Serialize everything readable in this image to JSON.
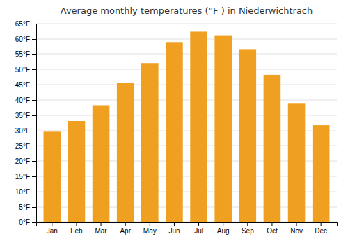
{
  "chart_data": {
    "type": "bar",
    "title": "Average monthly temperatures (°F ) in Niederwichtrach",
    "categories": [
      "Jan",
      "Feb",
      "Mar",
      "Apr",
      "May",
      "Jun",
      "Jul",
      "Aug",
      "Sep",
      "Oct",
      "Nov",
      "Dec"
    ],
    "values": [
      29.7,
      33.1,
      38.3,
      45.5,
      52.0,
      58.8,
      62.4,
      61.0,
      56.5,
      48.2,
      38.8,
      31.8
    ],
    "color": "#F0A020",
    "ylim": [
      0,
      65
    ],
    "yticks": [
      {
        "value": 0,
        "label": "0°F"
      },
      {
        "value": 5,
        "label": "5°F"
      },
      {
        "value": 10,
        "label": "10°F"
      },
      {
        "value": 15,
        "label": "15°F"
      },
      {
        "value": 20,
        "label": "20°F"
      },
      {
        "value": 25,
        "label": "25°F"
      },
      {
        "value": 30,
        "label": "30°F"
      },
      {
        "value": 35,
        "label": "35°F"
      },
      {
        "value": 40,
        "label": "40°F"
      },
      {
        "value": 45,
        "label": "45°F"
      },
      {
        "value": 50,
        "label": "50°F"
      },
      {
        "value": 55,
        "label": "55°F"
      },
      {
        "value": 60,
        "label": "60°F"
      },
      {
        "value": 65,
        "label": "65°F"
      }
    ],
    "grid": true
  }
}
